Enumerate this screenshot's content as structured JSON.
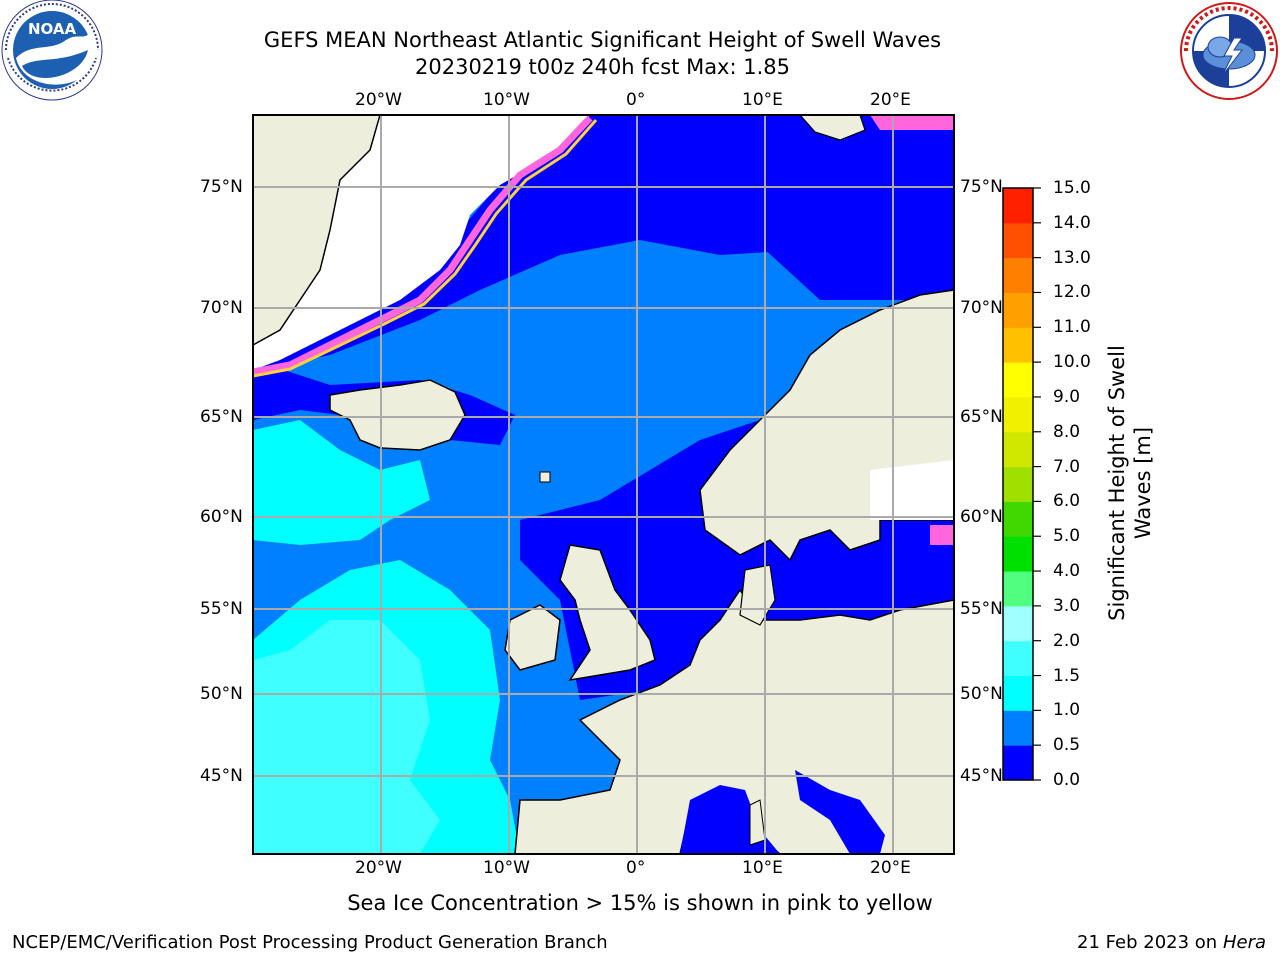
{
  "header": {
    "title_line1": "GEFS MEAN Northeast Atlantic Significant Height of Swell Waves",
    "title_line2": "20230219 t00z 240h fcst   Max: 1.85"
  },
  "logos": {
    "left": {
      "name": "noaa-logo",
      "text": "NOAA",
      "ring_text": "NATIONAL OCEANIC AND ATMOSPHERIC ADMINISTRATION · U.S. DEPARTMENT OF COMMERCE"
    },
    "right": {
      "name": "nws-logo",
      "ring_text": "NATIONAL WEATHER SERVICE"
    }
  },
  "map": {
    "lon_ticks_top": [
      "20°W",
      "10°W",
      "0°",
      "10°E",
      "20°E"
    ],
    "lon_ticks_bottom": [
      "20°W",
      "10°W",
      "0°",
      "10°E",
      "20°E"
    ],
    "lat_ticks_left": [
      "75°N",
      "70°N",
      "65°N",
      "60°N",
      "55°N",
      "50°N",
      "45°N"
    ],
    "lat_ticks_right": [
      "75°N",
      "70°N",
      "65°N",
      "60°N",
      "55°N",
      "50°N",
      "45°N"
    ],
    "colors": {
      "land": "#eeeedd",
      "ice": "#ffffff",
      "grid": "#aaaaaa",
      "coast": "#000000"
    }
  },
  "colorbar": {
    "label": "Significant Height of Swell Waves [m]",
    "ticks": [
      "15.0",
      "14.0",
      "13.0",
      "12.0",
      "11.0",
      "10.0",
      "9.0",
      "8.0",
      "7.0",
      "6.0",
      "5.0",
      "4.0",
      "3.0",
      "2.0",
      "1.5",
      "1.0",
      "0.5",
      "0.0"
    ],
    "colors": [
      "#0000ff",
      "#0080ff",
      "#00ffff",
      "#40ffff",
      "#a0ffff",
      "#50ff80",
      "#00e000",
      "#40d800",
      "#a0e000",
      "#d0e800",
      "#f0f000",
      "#ffff00",
      "#ffc000",
      "#ffa000",
      "#ff8000",
      "#ff5000",
      "#ff2000",
      "#ff0000"
    ]
  },
  "note": "Sea Ice Concentration > 15% is shown in pink to yellow",
  "footer": {
    "left": "NCEP/EMC/Verification Post Processing Product Generation Branch",
    "right_date": "21 Feb 2023 on",
    "right_host": "Hera"
  }
}
